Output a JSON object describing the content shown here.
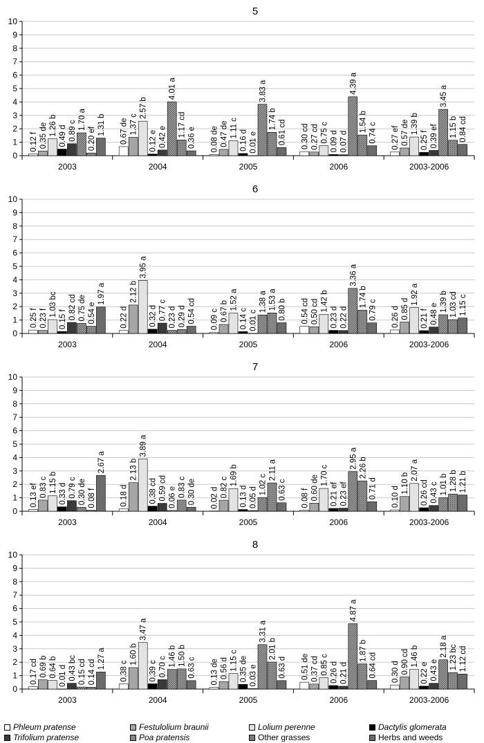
{
  "chart_data": [
    {
      "type": "bar",
      "title": "5",
      "ylim": [
        0,
        10
      ],
      "yticks": [
        0,
        1,
        2,
        3,
        4,
        5,
        6,
        7,
        8,
        9,
        10
      ],
      "grid": true,
      "categories": [
        "2003",
        "2004",
        "2005",
        "2006",
        "2003-2006"
      ],
      "series": [
        {
          "name": "Phleum pratense",
          "values": [
            0.12,
            0.67,
            0.08,
            0.3,
            0.27
          ],
          "labels": [
            "0.12 f",
            "0.67 de",
            "0.08 de",
            "0.30 cd",
            "0.27 ef"
          ]
        },
        {
          "name": "Festulolium braunii",
          "values": [
            0.35,
            1.37,
            0.47,
            0.27,
            0.57
          ],
          "labels": [
            "0.35 de",
            "1.37 c",
            "0.47 de",
            "0.27 cd",
            "0.57 de"
          ]
        },
        {
          "name": "Lolium perenne",
          "values": [
            1.26,
            2.57,
            1.11,
            0.75,
            1.39
          ],
          "labels": [
            "1.26 b",
            "2.57 b",
            "1.11 c",
            "0.75 c",
            "1.39 b"
          ]
        },
        {
          "name": "Dactylis glomerata",
          "values": [
            0.49,
            0.12,
            0.16,
            0.09,
            0.25
          ],
          "labels": [
            "0.49 d",
            "0.12 e",
            "0.16 d",
            "0.09 d",
            "0.25 f"
          ]
        },
        {
          "name": "Trifolium pratense",
          "values": [
            0.89,
            0.42,
            0.01,
            0.07,
            0.39
          ],
          "labels": [
            "0.89 c",
            "0.42 e",
            "0.01 e",
            "0.07 d",
            "0.39 ef"
          ]
        },
        {
          "name": "Poa pratensis",
          "values": [
            1.7,
            4.01,
            3.83,
            4.39,
            3.45
          ],
          "labels": [
            "1.70 a",
            "4.01 a",
            "3.83 a",
            "4.39 a",
            "3.45 a"
          ]
        },
        {
          "name": "Other grasses",
          "values": [
            0.2,
            1.17,
            1.74,
            1.54,
            1.15
          ],
          "labels": [
            "0.20 ef",
            "1.17 cd",
            "1.74 b",
            "1.54 b",
            "1.15 b"
          ]
        },
        {
          "name": "Herbs and weeds",
          "values": [
            1.31,
            0.36,
            0.61,
            0.74,
            0.84
          ],
          "labels": [
            "1.31 b",
            "0.36 e",
            "0.61 cd",
            "0.74 c",
            "0.84 cd"
          ]
        }
      ]
    },
    {
      "type": "bar",
      "title": "6",
      "ylim": [
        0,
        10
      ],
      "yticks": [
        0,
        1,
        2,
        3,
        4,
        5,
        6,
        7,
        8,
        9,
        10
      ],
      "grid": true,
      "categories": [
        "2003",
        "2004",
        "2005",
        "2006",
        "2003-2006"
      ],
      "series": [
        {
          "name": "Phleum pratense",
          "values": [
            0.25,
            0.22,
            0.09,
            0.54,
            0.26
          ],
          "labels": [
            "0.25 f",
            "0.22 d",
            "0.09 c",
            "0.54 cd",
            "0.26 d"
          ]
        },
        {
          "name": "Festulolium braunii",
          "values": [
            0.23,
            2.12,
            0.67,
            0.5,
            0.85
          ],
          "labels": [
            "0.23 f",
            "2.12 b",
            "0.67 b",
            "0.50 cd",
            "0.85 d"
          ]
        },
        {
          "name": "Lolium perenne",
          "values": [
            1.03,
            3.95,
            1.52,
            1.42,
            1.92
          ],
          "labels": [
            "1.03 bc",
            "3.95 a",
            "1.52 a",
            "1.42 b",
            "1.92 a"
          ]
        },
        {
          "name": "Dactylis glomerata",
          "values": [
            0.15,
            0.32,
            0.14,
            0.23,
            0.21
          ],
          "labels": [
            "0.15 f",
            "0.32 d",
            "0.14 c",
            "0.23 d",
            "0.21 f"
          ]
        },
        {
          "name": "Trifolium pratense",
          "values": [
            0.82,
            0.77,
            0.01,
            0.22,
            0.48
          ],
          "labels": [
            "0.82 cd",
            "0.77 c",
            "0.01 c",
            "0.22 d",
            "0.48 e"
          ]
        },
        {
          "name": "Poa pratensis",
          "values": [
            0.75,
            0.23,
            1.38,
            3.36,
            1.39
          ],
          "labels": [
            "0.75 de",
            "0.23 d",
            "1.38 a",
            "3.36 a",
            "1.39 b"
          ]
        },
        {
          "name": "Other grasses",
          "values": [
            0.54,
            0.29,
            1.53,
            1.74,
            1.03
          ],
          "labels": [
            "0.54 e",
            "0.29 d",
            "1.53 a",
            "1.74 b",
            "1.03 cd"
          ]
        },
        {
          "name": "Herbs and weeds",
          "values": [
            1.97,
            0.54,
            0.8,
            0.79,
            1.15
          ],
          "labels": [
            "1.97 a",
            "0.54 cd",
            "0.80 b",
            "0.79 c",
            "1.15 c"
          ]
        }
      ]
    },
    {
      "type": "bar",
      "title": "7",
      "ylim": [
        0,
        10
      ],
      "yticks": [
        0,
        1,
        2,
        3,
        4,
        5,
        6,
        7,
        8,
        9,
        10
      ],
      "grid": true,
      "categories": [
        "2003",
        "2004",
        "2005",
        "2006",
        "2003-2006"
      ],
      "series": [
        {
          "name": "Phleum pratense",
          "values": [
            0.13,
            0.18,
            0.02,
            0.08,
            0.1
          ],
          "labels": [
            "0.13 ef",
            "0.18 d",
            "0.02 d",
            "0.08 f",
            "0.10 d"
          ]
        },
        {
          "name": "Festulolium braunii",
          "values": [
            0.83,
            2.13,
            0.82,
            0.6,
            1.1
          ],
          "labels": [
            "0.83 c",
            "2.13 b",
            "0.82 c",
            "0.60 de",
            "1.10 b"
          ]
        },
        {
          "name": "Lolium perenne",
          "values": [
            1.15,
            3.89,
            1.69,
            1.7,
            2.07
          ],
          "labels": [
            "1.15 b",
            "3.89 a",
            "1.69 b",
            "1.70 c",
            "2.07 a"
          ]
        },
        {
          "name": "Dactylis glomerata",
          "values": [
            0.33,
            0.38,
            0.13,
            0.21,
            0.26
          ],
          "labels": [
            "0.33 d",
            "0.38 cd",
            "0.13 d",
            "0.21 ef",
            "0.26 cd"
          ]
        },
        {
          "name": "Trifolium pratense",
          "values": [
            0.79,
            0.59,
            0.05,
            0.23,
            0.43
          ],
          "labels": [
            "0.79 c",
            "0.59 cd",
            "0.05 d",
            "0.23 ef",
            "0.43 c"
          ]
        },
        {
          "name": "Poa pratensis",
          "values": [
            0.3,
            0.06,
            1.02,
            2.95,
            1.01
          ],
          "labels": [
            "0.30 de",
            "0.06 e",
            "1.02 c",
            "2.95 a",
            "1.01 b"
          ]
        },
        {
          "name": "Other grasses",
          "values": [
            0.08,
            0.83,
            2.11,
            2.26,
            1.28
          ],
          "labels": [
            "0.08 f",
            "0.83 c",
            "2.11 a",
            "2.26 b",
            "1.28 b"
          ]
        },
        {
          "name": "Herbs and weeds",
          "values": [
            2.67,
            0.3,
            0.63,
            0.71,
            1.21
          ],
          "labels": [
            "2.67 a",
            "0.30 de",
            "0.63 c",
            "0.71 d",
            "1.21 b"
          ]
        }
      ]
    },
    {
      "type": "bar",
      "title": "8",
      "ylim": [
        0,
        10
      ],
      "yticks": [
        0,
        1,
        2,
        3,
        4,
        5,
        6,
        7,
        8,
        9,
        10
      ],
      "grid": true,
      "categories": [
        "2003",
        "2004",
        "2005",
        "2006",
        "2003-2006"
      ],
      "series": [
        {
          "name": "Phleum pratense",
          "values": [
            0.17,
            0.38,
            0.13,
            0.51,
            0.3
          ],
          "labels": [
            "0.17 cd",
            "0.38 c",
            "0.13 de",
            "0.51 de",
            "0.30 d"
          ]
        },
        {
          "name": "Festulolium braunii",
          "values": [
            0.69,
            1.6,
            0.56,
            0.37,
            0.9
          ],
          "labels": [
            "0.69 b",
            "1.60 b",
            "0.56 d",
            "0.37 cd",
            "0.90 cd"
          ]
        },
        {
          "name": "Lolium perenne",
          "values": [
            0.64,
            3.47,
            1.15,
            0.85,
            1.46
          ],
          "labels": [
            "0.64 b",
            "3.47 a",
            "1.15 c",
            "0.85 c",
            "1.46 b"
          ]
        },
        {
          "name": "Dactylis glomerata",
          "values": [
            0.01,
            0.39,
            0.35,
            0.26,
            0.22
          ],
          "labels": [
            "0.01 d",
            "0.39 c",
            "0.35 de",
            "0.26 d",
            "0.22 e"
          ]
        },
        {
          "name": "Trifolium pratense",
          "values": [
            0.43,
            0.7,
            0.03,
            0.21,
            0.43
          ],
          "labels": [
            "0.43 bc",
            "0.70 c",
            "0.03 e",
            "0.21 d",
            "0.43 e"
          ]
        },
        {
          "name": "Poa pratensis",
          "values": [
            0.15,
            1.46,
            3.31,
            4.87,
            2.18
          ],
          "labels": [
            "0.15 cd",
            "1.46 b",
            "3.31 a",
            "4.87 a",
            "2.18 a"
          ]
        },
        {
          "name": "Other grasses",
          "values": [
            0.14,
            1.5,
            2.01,
            1.87,
            1.23
          ],
          "labels": [
            "0.14 cd",
            "1.50 b",
            "2.01 b",
            "1.87 b",
            "1.23 bc"
          ]
        },
        {
          "name": "Herbs and weeds",
          "values": [
            1.27,
            0.63,
            0.63,
            0.64,
            1.12
          ],
          "labels": [
            "1.27 a",
            "0.63 c",
            "0.63 d",
            "0.64 cd",
            "1.12 cd"
          ]
        }
      ]
    }
  ],
  "legend": {
    "items": [
      {
        "label": "Phleum pratense",
        "italic": true,
        "color": "#ffffff"
      },
      {
        "label": "Festulolium braunii",
        "italic": true,
        "color": "#a6a6a6"
      },
      {
        "label": "Lolium perenne",
        "italic": true,
        "color": "#e3e3e3"
      },
      {
        "label": "Dactylis glomerata",
        "italic": true,
        "color": "#000000"
      },
      {
        "label": "Trifolium pratense",
        "italic": true,
        "color": "#3a3a3a"
      },
      {
        "label": "Poa pratensis",
        "italic": true,
        "color": "#8c8c8c"
      },
      {
        "label": "Other grasses",
        "italic": false,
        "color": "#7a7a7a"
      },
      {
        "label": "Herbs and weeds",
        "italic": false,
        "color": "#6b6b6b"
      }
    ]
  },
  "colors": {
    "series": [
      "#ffffff",
      "#a6a6a6",
      "#e3e3e3",
      "#000000",
      "#3a3a3a",
      "#8c8c8c",
      "#7a7a7a",
      "#6b6b6b"
    ],
    "grid": "#c8c8c8",
    "axis": "#000000",
    "text": "#000000"
  }
}
